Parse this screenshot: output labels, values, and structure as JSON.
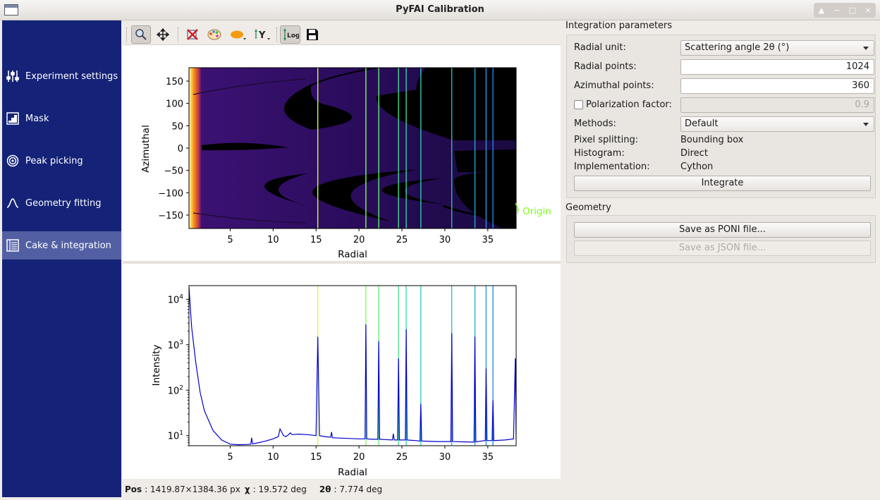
{
  "window": {
    "title": "PyFAI Calibration"
  },
  "sidebar": {
    "items": [
      {
        "label": "Experiment settings",
        "icon": "sliders-icon",
        "active": false
      },
      {
        "label": "Mask",
        "icon": "mask-icon",
        "active": false
      },
      {
        "label": "Peak picking",
        "icon": "target-icon",
        "active": false
      },
      {
        "label": "Geometry fitting",
        "icon": "peak-curve-icon",
        "active": false
      },
      {
        "label": "Cake & integration",
        "icon": "list-icon",
        "active": true
      }
    ]
  },
  "toolbar": {
    "buttons": [
      "zoom-icon",
      "pan-icon",
      "clear-mask-icon",
      "palette-icon",
      "shape-icon",
      "y-axis-icon",
      "log-scale-icon",
      "save-icon"
    ],
    "log_label": "Log"
  },
  "cake_plot": {
    "ylabel": "Azimuthal",
    "xlabel": "Radial",
    "y_ticks": [
      "150",
      "100",
      "50",
      "0",
      "−50",
      "−100",
      "−150"
    ],
    "x_ticks": [
      "5",
      "10",
      "15",
      "20",
      "25",
      "30",
      "35"
    ],
    "marker_label": "Origin",
    "colors": {
      "marker": "#7cff1a"
    }
  },
  "chart_data": {
    "type": "line",
    "title": "",
    "xlabel": "Radial",
    "ylabel": "Intensity",
    "xlim": [
      0.2,
      38.3
    ],
    "ylim": [
      6,
      20000
    ],
    "y_scale": "log",
    "x_ticks": [
      "5",
      "10",
      "15",
      "20",
      "25",
      "30",
      "35"
    ],
    "y_ticks": [
      "10^4",
      "10^3",
      "10^2",
      "10^1"
    ],
    "ring_positions": [
      15.2,
      20.8,
      22.3,
      24.6,
      25.5,
      27.2,
      30.8,
      33.5,
      34.8,
      35.6
    ],
    "series": [
      {
        "color": "#0000cc",
        "x": [
          0.2,
          0.5,
          1.0,
          1.5,
          2.0,
          3.0,
          4.0,
          5.0,
          6.0,
          7.0,
          7.4,
          7.5,
          7.6,
          8.0,
          9.0,
          10.0,
          10.6,
          10.8,
          11.0,
          11.2,
          11.5,
          11.8,
          12.0,
          12.2,
          13.0,
          14.0,
          15.0,
          15.2,
          15.4,
          16.0,
          16.7,
          16.8,
          16.9,
          18.0,
          20.0,
          20.7,
          20.8,
          20.9,
          21.5,
          22.2,
          22.3,
          22.4,
          23.0,
          23.9,
          24.0,
          24.1,
          24.5,
          24.6,
          24.7,
          25.4,
          25.5,
          25.6,
          26.5,
          27.1,
          27.2,
          27.3,
          29.0,
          30.7,
          30.8,
          30.9,
          32.0,
          33.4,
          33.5,
          33.6,
          34.0,
          34.7,
          34.8,
          34.9,
          35.5,
          35.6,
          35.7,
          37.0,
          38.0,
          38.2,
          38.3
        ],
        "y": [
          19000,
          2500,
          400,
          90,
          35,
          13,
          8,
          6.5,
          6.3,
          6.4,
          6.5,
          9,
          6.6,
          6.8,
          7.5,
          8.5,
          9.5,
          14,
          12,
          10,
          9.5,
          10.5,
          11.5,
          10.5,
          10.8,
          10.5,
          10.0,
          1500,
          10,
          9.5,
          9.2,
          12,
          9.0,
          8.8,
          8.5,
          8.5,
          2800,
          8.5,
          8.3,
          8.3,
          1200,
          8.3,
          8.2,
          8.0,
          11,
          8.0,
          8.0,
          500,
          8.0,
          8.0,
          2200,
          8.0,
          7.8,
          7.6,
          50,
          7.6,
          7.4,
          7.4,
          1800,
          7.4,
          7.3,
          7.2,
          1500,
          7.3,
          7.5,
          7.8,
          300,
          7.8,
          7.8,
          60,
          7.8,
          8.0,
          8.5,
          500,
          8.0
        ]
      }
    ]
  },
  "integration": {
    "title": "Integration parameters",
    "radial_unit_label": "Radial unit:",
    "radial_unit_value": "Scattering angle 2θ (°)",
    "radial_points_label": "Radial points:",
    "radial_points_value": "1024",
    "azimuthal_points_label": "Azimuthal points:",
    "azimuthal_points_value": "360",
    "polarization_label": "Polarization factor:",
    "polarization_value": "0.9",
    "methods_label": "Methods:",
    "methods_value": "Default",
    "pixel_splitting_label": "Pixel splitting:",
    "pixel_splitting_value": "Bounding box",
    "histogram_label": "Histogram:",
    "histogram_value": "Direct",
    "implementation_label": "Implementation:",
    "implementation_value": "Cython",
    "integrate_button": "Integrate"
  },
  "geometry": {
    "title": "Geometry",
    "save_poni_button": "Save as PONI file...",
    "save_json_button": "Save as JSON file..."
  },
  "status": {
    "pos_label": "Pos",
    "pos_value": ": 1419.87×1384.36 px",
    "chi_label": "χ",
    "chi_value": ": 19.572 deg",
    "tth_label": "2θ",
    "tth_value": ": 7.774 deg"
  }
}
